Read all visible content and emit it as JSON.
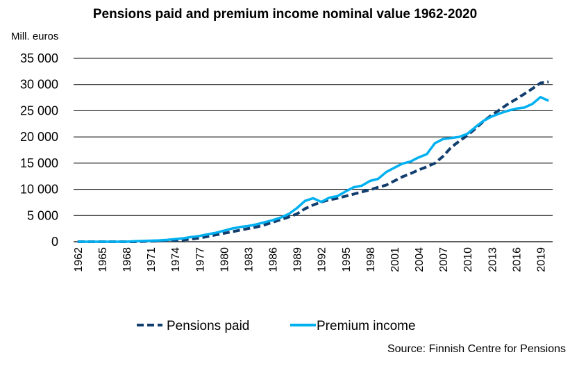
{
  "chart_data": {
    "type": "line",
    "title": "Pensions paid and premium income nominal value 1962-2020",
    "ylabel": "Mill. euros",
    "xlabel": "",
    "source": "Source: Finnish Centre for Pensions",
    "ylim": [
      0,
      35000
    ],
    "yticks": [
      0,
      5000,
      10000,
      15000,
      20000,
      25000,
      30000,
      35000
    ],
    "ytick_labels": [
      "0",
      "5 000",
      "10 000",
      "15 000",
      "20 000",
      "25 000",
      "30 000",
      "35 000"
    ],
    "xticks": [
      "1962",
      "1965",
      "1968",
      "1971",
      "1974",
      "1977",
      "1980",
      "1983",
      "1986",
      "1989",
      "1992",
      "1995",
      "1998",
      "2001",
      "2004",
      "2007",
      "2010",
      "2013",
      "2016",
      "2019"
    ],
    "grid": true,
    "legend_position": "bottom",
    "x": [
      1962,
      1963,
      1964,
      1965,
      1966,
      1967,
      1968,
      1969,
      1970,
      1971,
      1972,
      1973,
      1974,
      1975,
      1976,
      1977,
      1978,
      1979,
      1980,
      1981,
      1982,
      1983,
      1984,
      1985,
      1986,
      1987,
      1988,
      1989,
      1990,
      1991,
      1992,
      1993,
      1994,
      1995,
      1996,
      1997,
      1998,
      1999,
      2000,
      2001,
      2002,
      2003,
      2004,
      2005,
      2006,
      2007,
      2008,
      2009,
      2010,
      2011,
      2012,
      2013,
      2014,
      2015,
      2016,
      2017,
      2018,
      2019,
      2020
    ],
    "series": [
      {
        "name": "Pensions paid",
        "color": "#123e6e",
        "dash": "dashed",
        "values": [
          0,
          0,
          0,
          0,
          0,
          0,
          0,
          0,
          50,
          100,
          150,
          200,
          250,
          350,
          500,
          700,
          1000,
          1300,
          1600,
          1900,
          2200,
          2500,
          2800,
          3200,
          3700,
          4200,
          4700,
          5300,
          6300,
          7000,
          7600,
          8000,
          8300,
          8700,
          9100,
          9500,
          9900,
          10400,
          10800,
          11600,
          12400,
          13000,
          13700,
          14300,
          15000,
          16300,
          18000,
          19200,
          20300,
          21600,
          23000,
          24200,
          25200,
          26300,
          27200,
          28200,
          29200,
          30300,
          30500
        ]
      },
      {
        "name": "Premium income",
        "color": "#00b0f0",
        "dash": "solid",
        "values": [
          0,
          0,
          0,
          0,
          0,
          0,
          0,
          100,
          150,
          200,
          250,
          350,
          500,
          650,
          900,
          1100,
          1400,
          1700,
          2100,
          2500,
          2800,
          3000,
          3300,
          3700,
          4100,
          4600,
          5300,
          6400,
          7800,
          8300,
          7600,
          8400,
          8700,
          9600,
          10400,
          10700,
          11600,
          12000,
          13300,
          14100,
          14900,
          15300,
          16100,
          16700,
          18800,
          19600,
          19800,
          20000,
          20600,
          21900,
          23100,
          23900,
          24500,
          25000,
          25400,
          25600,
          26300,
          27600,
          26900
        ]
      }
    ]
  }
}
